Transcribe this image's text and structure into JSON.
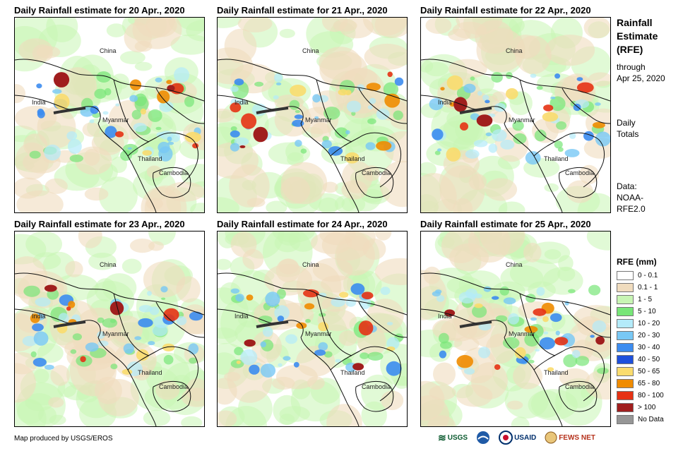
{
  "panels": [
    {
      "title": "Daily Rainfall estimate for 20 Apr., 2020"
    },
    {
      "title": "Daily Rainfall estimate for 21 Apr., 2020"
    },
    {
      "title": "Daily Rainfall estimate for 22 Apr., 2020"
    },
    {
      "title": "Daily Rainfall estimate for 23 Apr., 2020"
    },
    {
      "title": "Daily Rainfall estimate for 24 Apr., 2020"
    },
    {
      "title": "Daily Rainfall estimate for 25 Apr., 2020"
    }
  ],
  "map_labels": {
    "china": "China",
    "india": "India",
    "myanmar": "Myanmar",
    "thailand": "Thailand",
    "cambodia": "Cambodia"
  },
  "sidebar": {
    "title_line1": "Rainfall",
    "title_line2": "Estimate",
    "title_line3": "(RFE)",
    "through_line1": "through",
    "through_line2": "Apr 25, 2020",
    "daily_line1": "Daily",
    "daily_line2": "Totals",
    "data_line1": "Data:",
    "data_line2": "NOAA-",
    "data_line3": "RFE2.0"
  },
  "legend": {
    "title": "RFE (mm)",
    "items": [
      {
        "label": "0 - 0.1",
        "color": "#ffffff"
      },
      {
        "label": "0.1 - 1",
        "color": "#f0dcbe"
      },
      {
        "label": "1 - 5",
        "color": "#c8f5b4"
      },
      {
        "label": "5 - 10",
        "color": "#78e678"
      },
      {
        "label": "10 - 20",
        "color": "#b4ebfa"
      },
      {
        "label": "20 - 30",
        "color": "#78c8f5"
      },
      {
        "label": "30 - 40",
        "color": "#3c8cf0"
      },
      {
        "label": "40 - 50",
        "color": "#1e50dc"
      },
      {
        "label": "50 - 65",
        "color": "#fadc6e"
      },
      {
        "label": "65 - 80",
        "color": "#f08c00"
      },
      {
        "label": "80 - 100",
        "color": "#e63214"
      },
      {
        "label": "> 100",
        "color": "#a01e1e"
      },
      {
        "label": "No Data",
        "color": "#969696"
      }
    ]
  },
  "footer": {
    "credit": "Map produced by USGS/EROS",
    "logo_usgs": "USGS",
    "logo_usaid": "USAID",
    "logo_fewsnet": "FEWS NET"
  }
}
